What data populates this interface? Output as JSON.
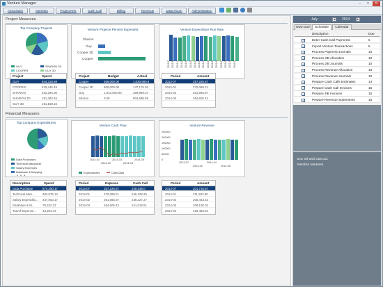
{
  "window": {
    "title": "Venture Manager"
  },
  "menu": [
    "Associates",
    "Interests",
    "ProjectAFE",
    "Cash Call",
    "Billing",
    "Revenue",
    "Data Room",
    "Administration"
  ],
  "project_measures": {
    "title": "Project Measures",
    "top_projects": {
      "title": "Top Company Projects",
      "legend": [
        "GUY",
        "COOPER",
        "SHARON",
        "SHARON 3D",
        "GUY 3D",
        "COOPER 3D"
      ],
      "table": {
        "headers": [
          "Project",
          "Spend"
        ],
        "rows": [
          [
            "GUY",
            "544,318.69"
          ],
          [
            "COOPER",
            "515,445.49"
          ],
          [
            "SHARON",
            "452,294.30"
          ],
          [
            "SHARON 3D",
            "191,483.45"
          ],
          [
            "GUY 3D",
            "181,158.15"
          ]
        ]
      }
    },
    "pct_expended": {
      "title": "Venture Projects Percent Expended",
      "bars": [
        "Sharon",
        "Guy",
        "Cooper 3D",
        "Cooper"
      ],
      "table": {
        "headers": [
          "Project",
          "Budget",
          "Actual"
        ],
        "rows": [
          [
            "Cooper",
            "356,000.00",
            "1,030,890.9"
          ],
          [
            "Cooper 3D",
            "500,000.00",
            "147,175.02"
          ],
          [
            "Guy",
            "1,910,000.00",
            "359,889.37"
          ],
          [
            "Sharon",
            "0.00",
            "904,588.59"
          ]
        ]
      }
    },
    "run_rate": {
      "title": "Venture Expenditure Run Rate",
      "xlabels": [
        "2013-07",
        "2013-09",
        "2013-11",
        "2014-01",
        "2014-03",
        "2014-05",
        "2014-07",
        "2014-09",
        "2014-11",
        "2015-01",
        "2015-03",
        "2015-05",
        "2015-07",
        "2015-09",
        "2015-11",
        "2016-01"
      ],
      "table": {
        "headers": [
          "Period",
          "Amount"
        ],
        "rows": [
          [
            "2013-07",
            "257,226.67"
          ],
          [
            "2014-01",
            "270,088.21"
          ],
          [
            "2014-02",
            "261,665.57"
          ],
          [
            "2014-03",
            "264,605.42"
          ],
          [
            "2014-04",
            "",
            "  "
          ]
        ]
      }
    }
  },
  "financial_measures": {
    "title": "Financial Measures",
    "top_expenditures": {
      "title": "Top Company Expenditures",
      "legend": [
        "Data Purchases",
        "Technical Manpower",
        "Salary Expenses",
        "Database & Mapping"
      ],
      "table": {
        "headers": [
          "Description",
          "Spend"
        ],
        "rows": [
          [
            "Data Purchase",
            "674,290.17"
          ],
          [
            "Technical Man...",
            "482,975.12"
          ],
          [
            "Salary Expenditu...",
            "347,063.17"
          ],
          [
            "Database & M...",
            "79,522.22"
          ],
          [
            "Travel Expense...",
            "43,281.43"
          ]
        ]
      }
    },
    "cash_flow": {
      "title": "Venture Cash Flow",
      "xlabels": [
        "2014-01",
        "2014-02",
        "2014-03",
        "2014-04",
        "2014-05"
      ],
      "legend": [
        "Expenditures",
        "CashCalls"
      ],
      "table": {
        "headers": [
          "Period",
          "Expense",
          "Cash Call"
        ],
        "rows": [
          [
            "2013-07",
            "257,226.67",
            "229,338.0"
          ],
          [
            "2014-01",
            "270,088.21",
            "246,108.25"
          ],
          [
            "2014-02",
            "261,665.57",
            "238,327.27"
          ],
          [
            "2014-03",
            "264,605.42",
            "241,018.51"
          ],
          [
            "2014-04",
            "",
            "   "
          ]
        ]
      }
    },
    "revenue": {
      "title": "Venture Revenue",
      "yticks": [
        "250000",
        "200000",
        "150000",
        "100000",
        "50000",
        "0"
      ],
      "xlabels": [
        "2013-07",
        "2014-02",
        "2014-04",
        "2014-06"
      ],
      "table": {
        "headers": [
          "Period",
          "Amount"
        ],
        "rows": [
          [
            "2013-07",
            "201,716.67"
          ],
          [
            "2014-01",
            "211,503.80"
          ],
          [
            "2014-02",
            "205,443.43"
          ],
          [
            "2014-03",
            "208,100.02"
          ],
          [
            "2014-04",
            "219,483.34"
          ]
        ]
      }
    }
  },
  "pager": "• • •",
  "right_panel": {
    "month": "July",
    "year": "2014",
    "prev": "◄",
    "next": "►",
    "tabs": [
      "Now Due",
      "Schedule",
      "Calendar"
    ],
    "headers": [
      "Description",
      "Due"
    ],
    "tasks": [
      [
        "Enter Cash Call Payments",
        "5"
      ],
      [
        "Import Venture Transactions",
        "5"
      ],
      [
        "Process Payment Journals",
        "10"
      ],
      [
        "Process JIB Allocation",
        "10"
      ],
      [
        "Process JIB Journals",
        "10"
      ],
      [
        "Process Revenue Allocation",
        "10"
      ],
      [
        "Process Revenue Journals",
        "10"
      ],
      [
        "Prepare Cash Calls Estimates",
        "14"
      ],
      [
        "Prepare Cash Call Invoices",
        "15"
      ],
      [
        "Prepare JIB Invoices",
        "15"
      ],
      [
        "Prepare Revenue Statements",
        "15"
      ]
    ],
    "companies": [
      "Eoc Oil and Gas Ltd.",
      "Nembra Ventures"
    ]
  }
}
